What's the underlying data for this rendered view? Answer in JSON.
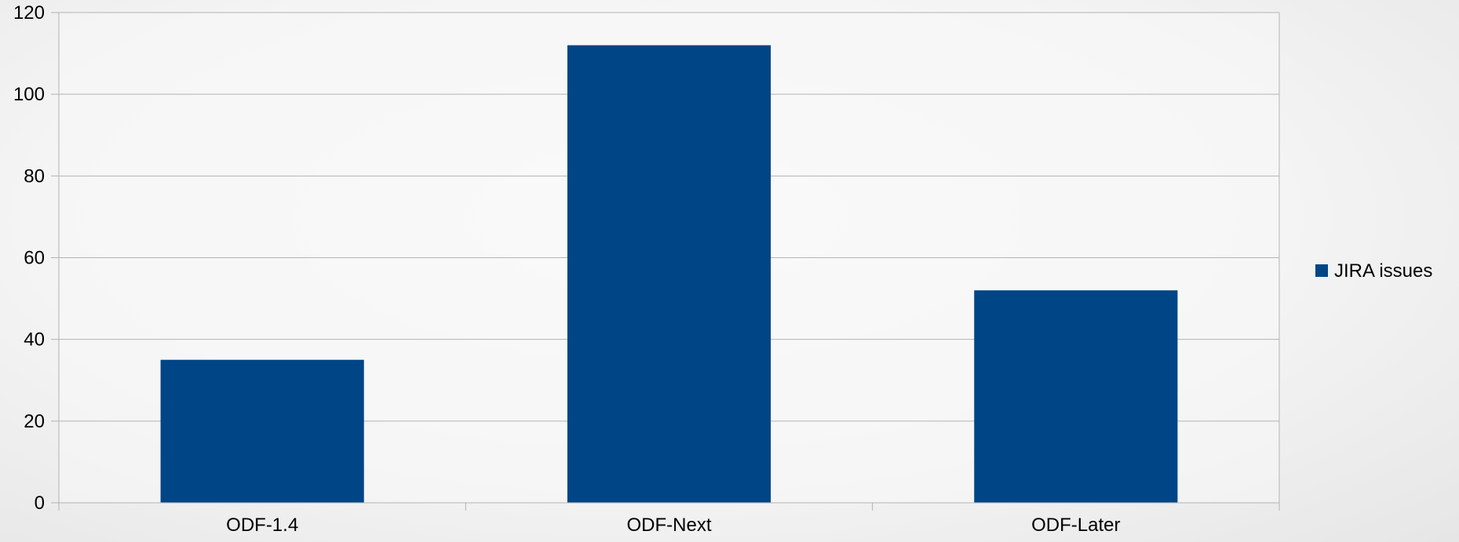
{
  "chart_data": {
    "type": "bar",
    "categories": [
      "ODF-1.4",
      "ODF-Next",
      "ODF-Later"
    ],
    "series": [
      {
        "name": "JIRA issues",
        "values": [
          35,
          112,
          52
        ],
        "color": "#004586"
      }
    ],
    "title": "",
    "xlabel": "",
    "ylabel": "",
    "ylim": [
      0,
      120
    ],
    "yticks": [
      0,
      20,
      40,
      60,
      80,
      100,
      120
    ],
    "grid": true,
    "legend_position": "right",
    "colors": {
      "grid": "#b3b3b3",
      "axis": "#b3b3b3",
      "plot_background": "#f8f8f8"
    }
  }
}
